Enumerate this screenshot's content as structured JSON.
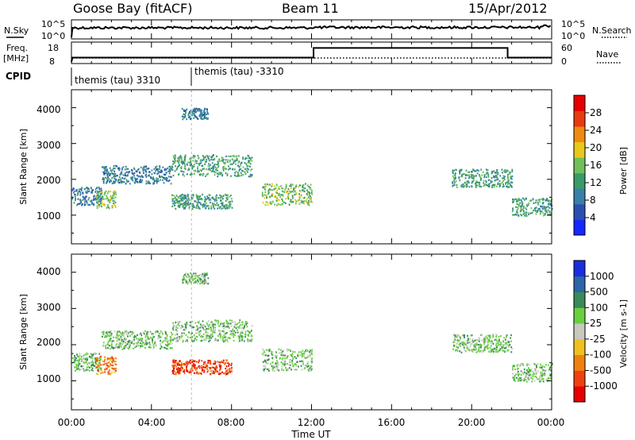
{
  "header": {
    "station": "Goose Bay (fitACF)",
    "beam": "Beam 11",
    "date": "15/Apr/2012"
  },
  "top_panels": {
    "nsky_label": "N.Sky",
    "nsky_ticks": [
      "10^5",
      "10^0"
    ],
    "nsearch_label": "N.Search",
    "nsearch_ticks": [
      "10^5",
      "10^0"
    ],
    "freq_label": "Freq.",
    "freq_unit": "[MHz]",
    "freq_ticks": [
      "18",
      "8"
    ],
    "nave_label": "Nave",
    "nave_ticks": [
      "60",
      "0"
    ],
    "cpid_label": "CPID",
    "cpid_segments": [
      {
        "start_h": 0,
        "end_h": 6,
        "label": "themis (tau) 3310"
      },
      {
        "start_h": 6,
        "end_h": 24,
        "label": "themis (tau) -3310"
      }
    ],
    "nave_step": [
      {
        "start_h": 0,
        "end_h": 12.1,
        "value": 15
      },
      {
        "start_h": 12.1,
        "end_h": 21.8,
        "value": 48
      },
      {
        "start_h": 21.8,
        "end_h": 24,
        "value": 15
      }
    ]
  },
  "x_axis": {
    "label": "Time UT",
    "ticks": [
      "00:00",
      "04:00",
      "08:00",
      "12:00",
      "16:00",
      "20:00",
      "00:00"
    ]
  },
  "panels": {
    "power": {
      "ylabel": "Slant Range [km]",
      "yticks": [
        "1000",
        "2000",
        "3000",
        "4000"
      ],
      "cbar_label": "Power [dB]",
      "cbar_ticks": [
        "4",
        "8",
        "12",
        "16",
        "20",
        "24",
        "28"
      ],
      "cbar_colors": [
        "#1528ff",
        "#2a4fb0",
        "#3a7fa8",
        "#3a9a6a",
        "#6fc05a",
        "#e8c81a",
        "#f08a10",
        "#e83a10",
        "#e80000"
      ]
    },
    "velocity": {
      "ylabel": "Slant Range [km]",
      "yticks": [
        "1000",
        "2000",
        "3000",
        "4000"
      ],
      "cbar_label": "Velocity [m s-1]",
      "cbar_ticks": [
        "1000",
        "500",
        "100",
        "25",
        "-25",
        "-100",
        "-500",
        "-1000"
      ],
      "cbar_colors": [
        "#1a2ee0",
        "#2a66a8",
        "#3a8a5a",
        "#6ad040",
        "#c8c8c0",
        "#f0c020",
        "#f08010",
        "#f04010",
        "#e80000"
      ]
    }
  },
  "chart_data": {
    "type": "heatmap",
    "title": "Goose Bay (fitACF)  Beam 11  15/Apr/2012",
    "xlabel": "Time UT",
    "ylabel": "Slant Range [km]",
    "xlim_hours": [
      0,
      24
    ],
    "ylim_km": [
      200,
      4500
    ],
    "grid": false,
    "echo_regions": [
      {
        "start_h": 0.0,
        "end_h": 1.5,
        "range_km": [
          1300,
          1800
        ],
        "power_db": 8,
        "velocity": 25
      },
      {
        "start_h": 1.5,
        "end_h": 5.0,
        "range_km": [
          1900,
          2400
        ],
        "power_db": 8,
        "velocity": 25
      },
      {
        "start_h": 5.0,
        "end_h": 9.0,
        "range_km": [
          2100,
          2700
        ],
        "power_db": 12,
        "velocity": 25
      },
      {
        "start_h": 9.5,
        "end_h": 12.0,
        "range_km": [
          1300,
          1900
        ],
        "power_db": 14,
        "velocity": 25
      },
      {
        "start_h": 1.2,
        "end_h": 2.2,
        "range_km": [
          1200,
          1700
        ],
        "power_db": 16,
        "velocity": -100
      },
      {
        "start_h": 5.0,
        "end_h": 8.0,
        "range_km": [
          1200,
          1600
        ],
        "power_db": 12,
        "velocity": -500
      },
      {
        "start_h": 5.5,
        "end_h": 6.8,
        "range_km": [
          3700,
          4000
        ],
        "power_db": 8,
        "velocity": 25
      },
      {
        "start_h": 19.0,
        "end_h": 22.0,
        "range_km": [
          1800,
          2300
        ],
        "power_db": 10,
        "velocity": 25
      },
      {
        "start_h": 22.0,
        "end_h": 24.0,
        "range_km": [
          1000,
          1500
        ],
        "power_db": 12,
        "velocity": 25
      }
    ]
  }
}
